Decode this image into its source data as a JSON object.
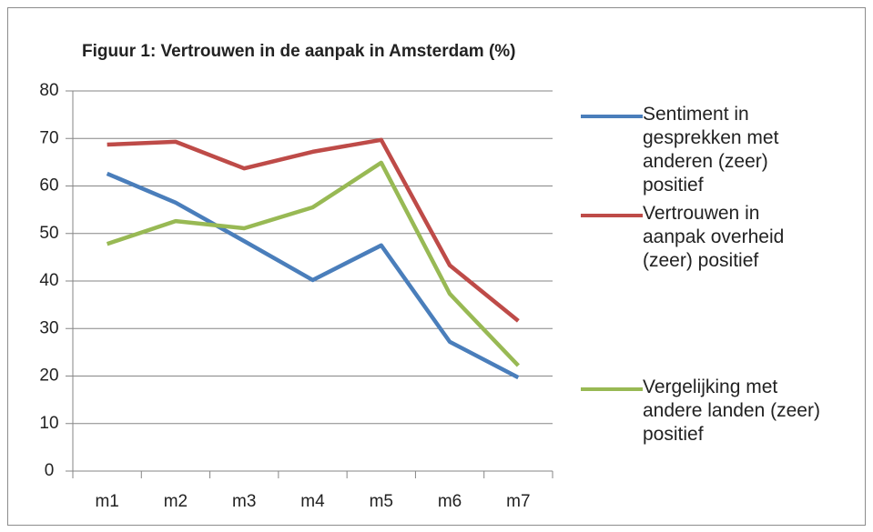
{
  "chart_data": {
    "type": "line",
    "title": "Figuur 1: Vertrouwen in de aanpak in Amsterdam (%)",
    "categories": [
      "m1",
      "m2",
      "m3",
      "m4",
      "m5",
      "m6",
      "m7"
    ],
    "series": [
      {
        "name": "Sentiment in gesprekken met anderen (zeer) positief",
        "color": "#4a7ebb",
        "values": [
          62.6,
          56.5,
          48.4,
          40.2,
          47.5,
          27.2,
          19.7
        ]
      },
      {
        "name": "Vertrouwen in aanpak overheid (zeer) positief",
        "color": "#be4b48",
        "values": [
          68.7,
          69.3,
          63.7,
          67.2,
          69.7,
          43.3,
          31.6
        ]
      },
      {
        "name": "Vergelijking met andere landen (zeer) positief",
        "color": "#98b954",
        "values": [
          47.8,
          52.6,
          51.1,
          55.5,
          64.9,
          37.3,
          22.2
        ]
      }
    ],
    "ylim": [
      0,
      80
    ],
    "yticks": [
      0,
      10,
      20,
      30,
      40,
      50,
      60,
      70,
      80
    ],
    "grid": true
  }
}
